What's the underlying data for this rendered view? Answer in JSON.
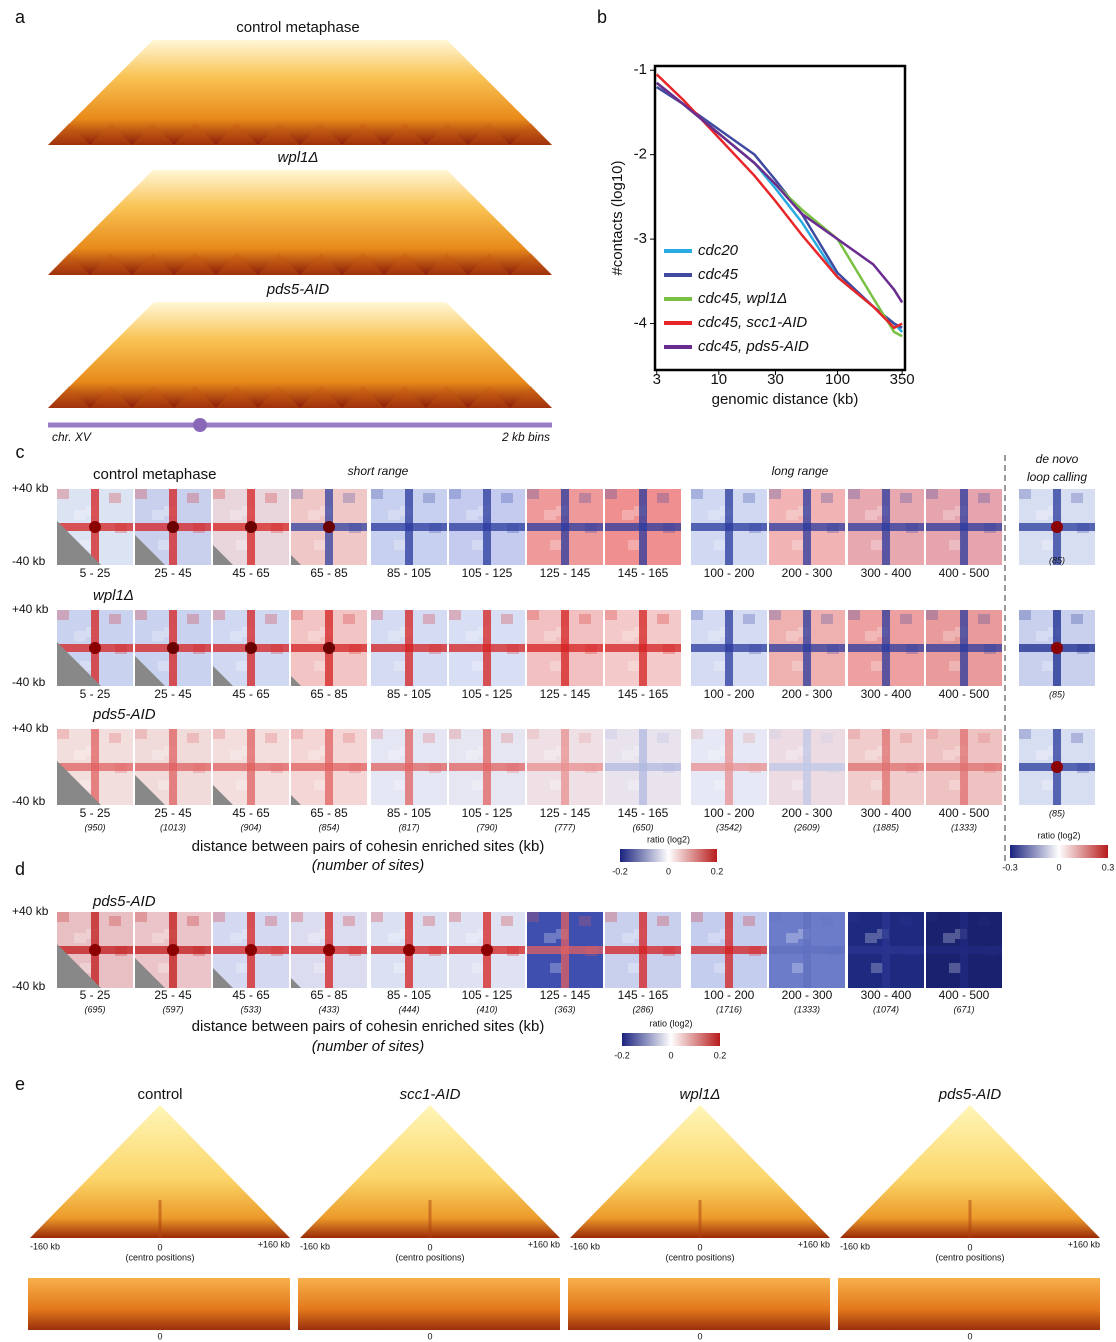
{
  "panels": {
    "a": {
      "label": "a",
      "titles": [
        "control metaphase",
        "wpl1Δ",
        "pds5-AID"
      ],
      "chromosome": "chr. XV",
      "bins": "2 kb bins"
    },
    "b": {
      "label": "b"
    },
    "c": {
      "label": "c",
      "rows": [
        "control metaphase",
        "wpl1Δ",
        "pds5-AID"
      ],
      "top": "+40 kb",
      "bottom": "-40 kb",
      "short_range": "short range",
      "long_range": "long range",
      "de_novo": [
        "de novo",
        "loop calling"
      ],
      "columns": [
        "5 - 25",
        "25 - 45",
        "45 - 65",
        "65 - 85",
        "85 - 105",
        "105 - 125",
        "125 - 145",
        "145 - 165",
        "100 - 200",
        "200 - 300",
        "300 - 400",
        "400 - 500"
      ],
      "counts": [
        "(950)",
        "(1013)",
        "(904)",
        "(854)",
        "(817)",
        "(790)",
        "(777)",
        "(650)",
        "(3542)",
        "(2609)",
        "(1885)",
        "(1333)"
      ],
      "de_novo_count": "(85)",
      "x_label": "distance between pairs of cohesin enriched sites (kb)",
      "x_sublabel": "(number of sites)",
      "colorbar": {
        "title": "ratio (log2)",
        "ticks": [
          "-0.2",
          "0",
          "0.2"
        ]
      },
      "colorbar2": {
        "title": "ratio (log2)",
        "ticks": [
          "-0.3",
          "0",
          "0.3"
        ]
      }
    },
    "d": {
      "label": "d",
      "row": "pds5-AID",
      "top": "+40 kb",
      "bottom": "-40 kb",
      "counts": [
        "(695)",
        "(597)",
        "(533)",
        "(433)",
        "(444)",
        "(410)",
        "(363)",
        "(286)",
        "(1716)",
        "(1333)",
        "(1074)",
        "(671)"
      ],
      "x_label": "distance between pairs of cohesin enriched sites (kb)",
      "x_sublabel": "(number of sites)",
      "colorbar": {
        "title": "ratio (log2)",
        "ticks": [
          "-0.2",
          "0",
          "0.2"
        ]
      }
    },
    "e": {
      "label": "e",
      "titles": [
        "control",
        "scc1-AID",
        "wpl1Δ",
        "pds5-AID"
      ],
      "left": "-160 kb",
      "center": "0",
      "right": "+160 kb",
      "note": "(centro positions)"
    }
  },
  "chart_data": {
    "type": "line",
    "ylabel": "#contacts (log10)",
    "xlabel": "genomic distance (kb)",
    "xscale": "log",
    "x": [
      3,
      5,
      10,
      20,
      30,
      50,
      100,
      200,
      300,
      350
    ],
    "xlim": [
      2.9,
      370
    ],
    "ylim": [
      -4.55,
      -0.95
    ],
    "xticks": [
      3,
      10,
      30,
      100,
      350
    ],
    "yticks": [
      -1,
      -2,
      -3,
      -4
    ],
    "series": [
      {
        "name": "cdc20",
        "color": "#29abe2",
        "values": [
          -1.15,
          -1.4,
          -1.75,
          -2.1,
          -2.4,
          -2.8,
          -3.45,
          -3.8,
          -4.0,
          -4.1
        ]
      },
      {
        "name": "cdc45",
        "color": "#3f4aa0",
        "values": [
          -1.2,
          -1.4,
          -1.7,
          -2.0,
          -2.3,
          -2.7,
          -3.4,
          -3.8,
          -4.0,
          -4.05
        ]
      },
      {
        "name": "cdc45, wpl1Δ",
        "color": "#7ac143",
        "values": [
          -1.15,
          -1.4,
          -1.75,
          -2.1,
          -2.35,
          -2.65,
          -3.0,
          -3.7,
          -4.1,
          -4.15
        ]
      },
      {
        "name": "cdc45, scc1-AID",
        "color": "#e8262a",
        "values": [
          -1.05,
          -1.35,
          -1.8,
          -2.25,
          -2.55,
          -2.95,
          -3.45,
          -3.8,
          -4.05,
          -4.0
        ]
      },
      {
        "name": "cdc45, pds5-AID",
        "color": "#6a2c91",
        "values": [
          -1.15,
          -1.4,
          -1.75,
          -2.1,
          -2.35,
          -2.7,
          -3.0,
          -3.3,
          -3.6,
          -3.75
        ]
      }
    ]
  }
}
